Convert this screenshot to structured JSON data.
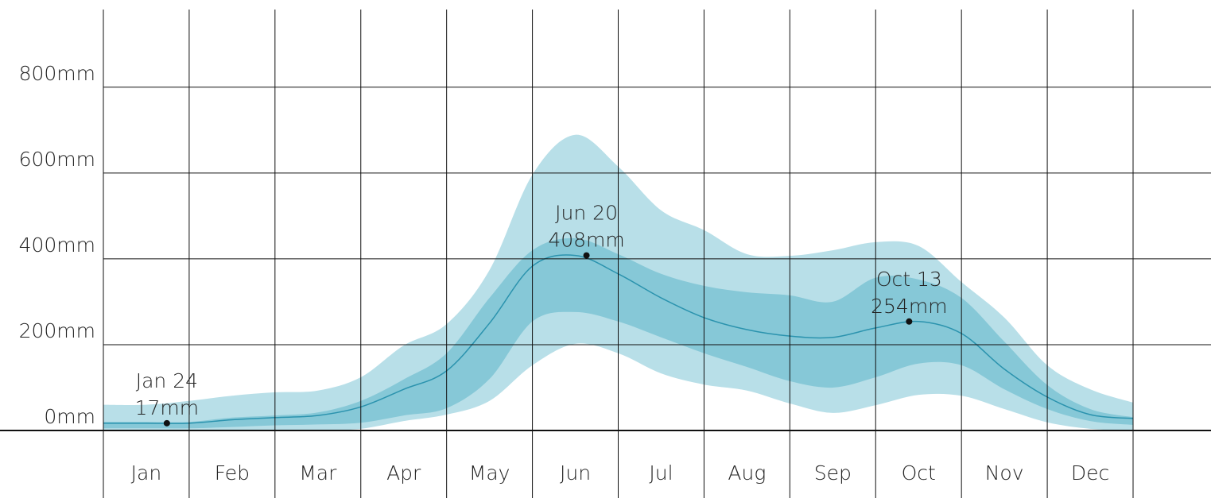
{
  "chart_data": {
    "type": "band-line",
    "x": [
      0,
      0.5,
      1,
      1.5,
      2,
      2.5,
      3,
      3.5,
      4,
      4.5,
      5,
      5.5,
      6,
      6.5,
      7,
      7.5,
      8,
      8.5,
      9,
      9.5,
      10,
      10.5,
      11,
      11.5,
      12
    ],
    "xlim": [
      0,
      12
    ],
    "categories": [
      "Jan",
      "Feb",
      "Mar",
      "Apr",
      "May",
      "Jun",
      "Jul",
      "Aug",
      "Sep",
      "Oct",
      "Nov",
      "Dec"
    ],
    "bands": [
      {
        "color": "#b8dfe8",
        "upper": [
          60,
          60,
          69,
          81,
          89,
          93,
          124,
          198,
          248,
          374,
          596,
          689,
          615,
          513,
          467,
          411,
          407,
          420,
          439,
          430,
          346,
          263,
          152,
          96,
          65
        ],
        "lower": [
          0,
          0,
          0,
          0,
          0,
          0,
          4,
          22,
          37,
          69,
          152,
          202,
          180,
          133,
          107,
          93,
          63,
          41,
          59,
          83,
          81,
          50,
          19,
          4,
          0
        ]
      },
      {
        "color": "#86c8d7",
        "upper": [
          20,
          20,
          20,
          30,
          35,
          42,
          69,
          119,
          180,
          309,
          420,
          448,
          411,
          365,
          337,
          322,
          315,
          300,
          356,
          352,
          309,
          207,
          106,
          50,
          31
        ],
        "lower": [
          5,
          5,
          5,
          8,
          12,
          14,
          18,
          35,
          52,
          120,
          254,
          276,
          254,
          217,
          180,
          148,
          115,
          100,
          124,
          156,
          152,
          96,
          50,
          22,
          13
        ]
      }
    ],
    "line": {
      "color": "#2b93ae",
      "values": [
        17,
        17,
        17,
        25,
        30,
        35,
        55,
        96,
        139,
        250,
        383,
        408,
        365,
        309,
        263,
        235,
        220,
        217,
        239,
        254,
        226,
        143,
        78,
        37,
        28
      ]
    },
    "annotations": [
      {
        "x": 0.74,
        "value": 17,
        "label": "Jan 24",
        "value_label": "17mm"
      },
      {
        "x": 5.63,
        "value": 408,
        "label": "Jun 20",
        "value_label": "408mm"
      },
      {
        "x": 9.39,
        "value": 254,
        "label": "Oct 13",
        "value_label": "254mm"
      }
    ],
    "ylim": [
      0,
      981
    ],
    "yticks": [
      {
        "value": 0,
        "label": "0mm"
      },
      {
        "value": 200,
        "label": "200mm"
      },
      {
        "value": 400,
        "label": "400mm"
      },
      {
        "value": 600,
        "label": "600mm"
      },
      {
        "value": 800,
        "label": "800mm"
      }
    ],
    "grid": true
  }
}
